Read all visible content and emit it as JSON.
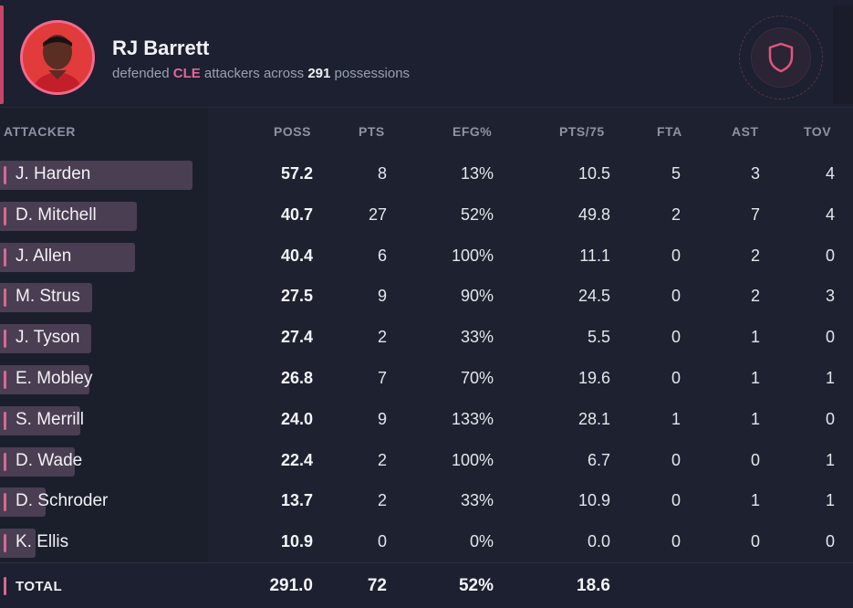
{
  "player": {
    "name": "RJ Barrett",
    "sub_prefix": "defended",
    "team": "CLE",
    "sub_middle": "attackers across",
    "possessions": "291",
    "sub_suffix": "possessions"
  },
  "icons": {
    "badge": "shield-icon",
    "avatar": "player-avatar"
  },
  "colors": {
    "accent": "#d46b94",
    "low": "#ee7f90",
    "high": "#6ee0a0"
  },
  "columns": [
    "ATTACKER",
    "POSS",
    "PTS",
    "EFG%",
    "PTS/75",
    "FTA",
    "AST",
    "TOV"
  ],
  "rows": [
    {
      "name": "J. Harden",
      "poss": "57.2",
      "pts": "8",
      "efg": "13%",
      "efg_class": "low",
      "pts75": "10.5",
      "fta": "5",
      "ast": "3",
      "tov": "4",
      "bar_frac": 0.925
    },
    {
      "name": "D. Mitchell",
      "poss": "40.7",
      "pts": "27",
      "efg": "52%",
      "efg_class": "neutral",
      "pts75": "49.8",
      "fta": "2",
      "ast": "7",
      "tov": "4",
      "bar_frac": 0.658
    },
    {
      "name": "J. Allen",
      "poss": "40.4",
      "pts": "6",
      "efg": "100%",
      "efg_class": "high",
      "pts75": "11.1",
      "fta": "0",
      "ast": "2",
      "tov": "0",
      "bar_frac": 0.649
    },
    {
      "name": "M. Strus",
      "poss": "27.5",
      "pts": "9",
      "efg": "90%",
      "efg_class": "high",
      "pts75": "24.5",
      "fta": "0",
      "ast": "2",
      "tov": "3",
      "bar_frac": 0.443
    },
    {
      "name": "J. Tyson",
      "poss": "27.4",
      "pts": "2",
      "efg": "33%",
      "efg_class": "low",
      "pts75": "5.5",
      "fta": "0",
      "ast": "1",
      "tov": "0",
      "bar_frac": 0.439
    },
    {
      "name": "E. Mobley",
      "poss": "26.8",
      "pts": "7",
      "efg": "70%",
      "efg_class": "high",
      "pts75": "19.6",
      "fta": "0",
      "ast": "1",
      "tov": "1",
      "bar_frac": 0.43
    },
    {
      "name": "S. Merrill",
      "poss": "24.0",
      "pts": "9",
      "efg": "133%",
      "efg_class": "high",
      "pts75": "28.1",
      "fta": "1",
      "ast": "1",
      "tov": "0",
      "bar_frac": 0.386
    },
    {
      "name": "D. Wade",
      "poss": "22.4",
      "pts": "2",
      "efg": "100%",
      "efg_class": "high",
      "pts75": "6.7",
      "fta": "0",
      "ast": "0",
      "tov": "1",
      "bar_frac": 0.36
    },
    {
      "name": "D. Schroder",
      "poss": "13.7",
      "pts": "2",
      "efg": "33%",
      "efg_class": "low",
      "pts75": "10.9",
      "fta": "0",
      "ast": "1",
      "tov": "1",
      "bar_frac": 0.219
    },
    {
      "name": "K. Ellis",
      "poss": "10.9",
      "pts": "0",
      "efg": "0%",
      "efg_class": "low",
      "pts75": "0.0",
      "fta": "0",
      "ast": "0",
      "tov": "0",
      "bar_frac": 0.171
    }
  ],
  "total": {
    "label": "TOTAL",
    "poss": "291.0",
    "pts": "72",
    "efg": "52%",
    "pts75": "18.6"
  }
}
